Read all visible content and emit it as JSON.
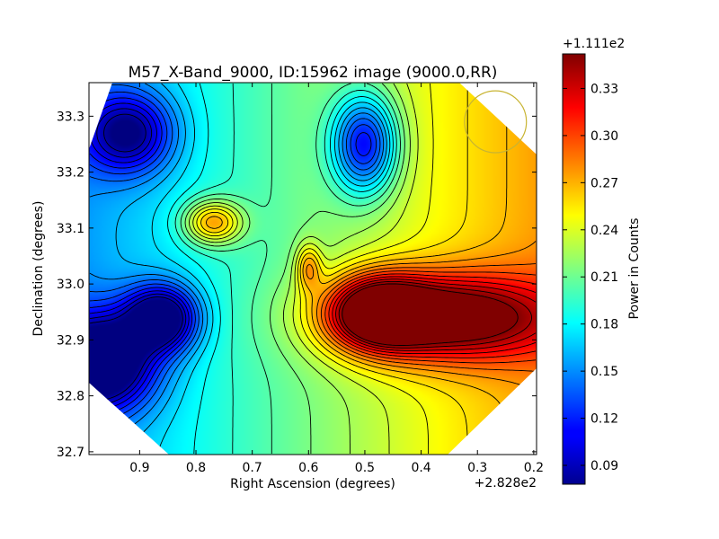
{
  "chart_data": {
    "type": "heatmap",
    "title": "M57_X-Band_9000, ID:15962 image (9000.0,RR)",
    "xlabel": "Right Ascension (degrees)",
    "ylabel": "Declination (degrees)",
    "x_offset_label": "+2.828e2",
    "xlim": [
      0.99,
      0.195
    ],
    "ylim": [
      32.695,
      33.36
    ],
    "x_ticks": [
      0.9,
      0.8,
      0.7,
      0.6,
      0.5,
      0.4,
      0.3,
      0.2
    ],
    "x_tick_labels": [
      "0.9",
      "0.8",
      "0.7",
      "0.6",
      "0.5",
      "0.4",
      "0.3",
      "0.2"
    ],
    "y_ticks": [
      32.7,
      32.8,
      32.9,
      33.0,
      33.1,
      33.2,
      33.3
    ],
    "y_tick_labels": [
      "32.7",
      "32.8",
      "32.9",
      "33.0",
      "33.1",
      "33.2",
      "33.3"
    ],
    "colormap": "jet",
    "colorbar": {
      "label": "Power in Counts",
      "offset_label": "+1.111e2",
      "range": [
        0.078,
        0.352
      ],
      "ticks": [
        0.09,
        0.12,
        0.15,
        0.18,
        0.21,
        0.24,
        0.27,
        0.3,
        0.33
      ],
      "tick_labels": [
        "0.09",
        "0.12",
        "0.15",
        "0.18",
        "0.21",
        "0.24",
        "0.27",
        "0.30",
        "0.33"
      ]
    },
    "field_features": [
      {
        "kind": "maximum",
        "ra": 0.36,
        "dec": 32.94,
        "value": 0.345
      },
      {
        "kind": "maximum",
        "ra": 0.48,
        "dec": 32.95,
        "value": 0.335
      },
      {
        "kind": "minimum",
        "ra": 0.97,
        "dec": 32.86,
        "value": 0.08
      },
      {
        "kind": "minimum",
        "ra": 0.86,
        "dec": 32.94,
        "value": 0.095
      },
      {
        "kind": "minimum",
        "ra": 0.5,
        "dec": 33.25,
        "value": 0.1
      },
      {
        "kind": "minimum",
        "ra": 0.92,
        "dec": 33.27,
        "value": 0.12
      },
      {
        "kind": "local-peak",
        "ra": 0.77,
        "dec": 33.11,
        "value": 0.3
      },
      {
        "kind": "local-peak",
        "ra": 0.6,
        "dec": 33.03,
        "value": 0.27
      }
    ],
    "beam": {
      "ra": 0.268,
      "dec": 33.29,
      "radius_deg": 0.055,
      "color": "#c8b432"
    },
    "contours": "yes",
    "grid": "off"
  }
}
